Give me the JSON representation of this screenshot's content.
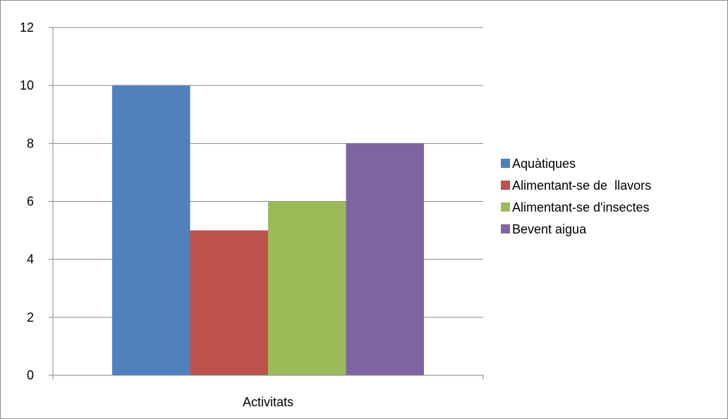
{
  "chart_data": {
    "type": "bar",
    "title": "",
    "xlabel": "",
    "ylabel": "",
    "categories": [
      "Activitats"
    ],
    "ylim": [
      0,
      12
    ],
    "yticks": [
      0,
      2,
      4,
      6,
      8,
      10,
      12
    ],
    "grid": true,
    "legend_position": "right",
    "series": [
      {
        "name": "Aquàtiques",
        "values": [
          10
        ],
        "color": "#4F81BD"
      },
      {
        "name": "Alimentant-se de  llavors",
        "values": [
          5
        ],
        "color": "#C0504D"
      },
      {
        "name": "Alimentant-se d'insectes",
        "values": [
          6
        ],
        "color": "#9BBB59"
      },
      {
        "name": "Bevent aigua",
        "values": [
          8
        ],
        "color": "#8064A2"
      }
    ]
  }
}
